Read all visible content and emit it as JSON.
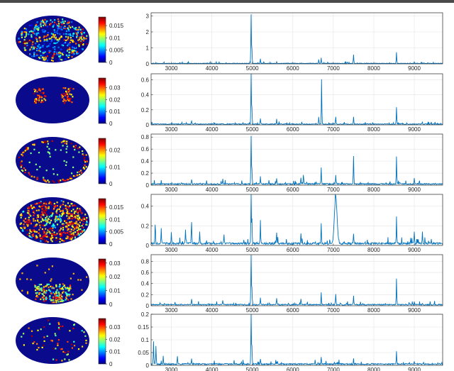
{
  "figure": {
    "rows": [
      {
        "colorbar_ticks": [
          "0.015",
          "0.01",
          "0.005",
          "0"
        ],
        "colorbar_tick_values": [
          0.015,
          0.01,
          0.005,
          0
        ],
        "colorbar_max": 0.0185
      },
      {
        "colorbar_ticks": [
          "0.03",
          "0.02",
          "0.01",
          "0"
        ],
        "colorbar_tick_values": [
          0.03,
          0.02,
          0.01,
          0
        ],
        "colorbar_max": 0.038
      },
      {
        "colorbar_ticks": [
          "0.02",
          "0.01",
          "0"
        ],
        "colorbar_tick_values": [
          0.02,
          0.01,
          0
        ],
        "colorbar_max": 0.027
      },
      {
        "colorbar_ticks": [
          "0.015",
          "0.01",
          "0.005",
          "0"
        ],
        "colorbar_tick_values": [
          0.015,
          0.01,
          0.005,
          0
        ],
        "colorbar_max": 0.0185
      },
      {
        "colorbar_ticks": [
          "0.03",
          "0.02",
          "0.01",
          "0"
        ],
        "colorbar_tick_values": [
          0.03,
          0.02,
          0.01,
          0
        ],
        "colorbar_max": 0.033
      },
      {
        "colorbar_ticks": [
          "0.03",
          "0.02",
          "0.01",
          "0"
        ],
        "colorbar_tick_values": [
          0.03,
          0.02,
          0.01,
          0
        ],
        "colorbar_max": 0.037
      }
    ]
  },
  "chart_data": [
    {
      "type": "line",
      "xlim": [
        2500,
        9700
      ],
      "ylim": [
        0,
        3.2
      ],
      "grid": true,
      "x_ticks": [
        "3000",
        "4000",
        "5000",
        "6000",
        "7000",
        "8000",
        "9000"
      ],
      "x_tick_values": [
        3000,
        4000,
        5000,
        6000,
        7000,
        8000,
        9000
      ],
      "y_ticks": [
        "3",
        "2",
        "1",
        "0"
      ],
      "y_tick_values": [
        3,
        2,
        1,
        0
      ],
      "baseline": 0.03,
      "peaks": [
        [
          4970,
          3.05
        ],
        [
          4990,
          0.9
        ],
        [
          5200,
          0.25
        ],
        [
          5600,
          0.1
        ],
        [
          6640,
          0.25
        ],
        [
          6700,
          0.35
        ],
        [
          7500,
          0.55
        ],
        [
          8560,
          0.7
        ],
        [
          9000,
          0.1
        ]
      ]
    },
    {
      "type": "line",
      "xlim": [
        2500,
        9700
      ],
      "ylim": [
        0,
        0.68
      ],
      "grid": true,
      "x_ticks": [
        "3000",
        "4000",
        "5000",
        "6000",
        "7000",
        "8000",
        "9000"
      ],
      "x_tick_values": [
        3000,
        4000,
        5000,
        6000,
        7000,
        8000,
        9000
      ],
      "y_ticks": [
        "0.6",
        "0.4",
        "0.2",
        "0"
      ],
      "y_tick_values": [
        0.6,
        0.4,
        0.2,
        0
      ],
      "baseline": 0.01,
      "peaks": [
        [
          3500,
          0.05
        ],
        [
          4970,
          0.68
        ],
        [
          4990,
          0.22
        ],
        [
          5200,
          0.08
        ],
        [
          5600,
          0.06
        ],
        [
          6640,
          0.1
        ],
        [
          6710,
          0.6
        ],
        [
          7060,
          0.1
        ],
        [
          7500,
          0.1
        ],
        [
          8560,
          0.22
        ],
        [
          9200,
          0.03
        ]
      ]
    },
    {
      "type": "line",
      "xlim": [
        2500,
        9700
      ],
      "ylim": [
        0,
        0.85
      ],
      "grid": true,
      "x_ticks": [
        "3000",
        "4000",
        "5000",
        "6000",
        "7000",
        "8000",
        "9000"
      ],
      "x_tick_values": [
        3000,
        4000,
        5000,
        6000,
        7000,
        8000,
        9000
      ],
      "y_ticks": [
        "0.8",
        "0.6",
        "0.4",
        "0.2",
        "0"
      ],
      "y_tick_values": [
        0.8,
        0.6,
        0.4,
        0.2,
        0
      ],
      "baseline": 0.02,
      "peaks": [
        [
          3500,
          0.08
        ],
        [
          4270,
          0.08
        ],
        [
          4970,
          0.8
        ],
        [
          4990,
          0.25
        ],
        [
          5200,
          0.12
        ],
        [
          5600,
          0.1
        ],
        [
          6200,
          0.1
        ],
        [
          6260,
          0.14
        ],
        [
          6700,
          0.28
        ],
        [
          7060,
          0.12
        ],
        [
          7500,
          0.47
        ],
        [
          8560,
          0.45
        ],
        [
          9000,
          0.1
        ]
      ]
    },
    {
      "type": "line",
      "xlim": [
        2500,
        9700
      ],
      "ylim": [
        0,
        0.52
      ],
      "grid": true,
      "x_ticks": [
        "3000",
        "4000",
        "5000",
        "6000",
        "7000",
        "8000",
        "9000"
      ],
      "x_tick_values": [
        3000,
        4000,
        5000,
        6000,
        7000,
        8000,
        9000
      ],
      "y_ticks": [
        "0.4",
        "0.2",
        "0"
      ],
      "y_tick_values": [
        0.4,
        0.2,
        0
      ],
      "baseline": 0.02,
      "peaks": [
        [
          2600,
          0.2
        ],
        [
          2750,
          0.15
        ],
        [
          3000,
          0.12
        ],
        [
          3350,
          0.15
        ],
        [
          3500,
          0.22
        ],
        [
          3700,
          0.12
        ],
        [
          4300,
          0.1
        ],
        [
          4970,
          0.5
        ],
        [
          4990,
          0.25
        ],
        [
          5200,
          0.2
        ],
        [
          5600,
          0.12
        ],
        [
          6200,
          0.1
        ],
        [
          6700,
          0.2
        ],
        [
          7060,
          0.48
        ],
        [
          7500,
          0.1
        ],
        [
          8560,
          0.27
        ],
        [
          9000,
          0.12
        ],
        [
          9200,
          0.12
        ]
      ]
    },
    {
      "type": "line",
      "xlim": [
        2500,
        9700
      ],
      "ylim": [
        0,
        0.92
      ],
      "grid": true,
      "x_ticks": [
        "3000",
        "4000",
        "5000",
        "6000",
        "7000",
        "8000",
        "9000"
      ],
      "x_tick_values": [
        3000,
        4000,
        5000,
        6000,
        7000,
        8000,
        9000
      ],
      "y_ticks": [
        "0.8",
        "0.6",
        "0.4",
        "0.2",
        "0"
      ],
      "y_tick_values": [
        0.8,
        0.6,
        0.4,
        0.2,
        0
      ],
      "baseline": 0.02,
      "peaks": [
        [
          3500,
          0.1
        ],
        [
          4270,
          0.08
        ],
        [
          4970,
          0.9
        ],
        [
          4990,
          0.3
        ],
        [
          5200,
          0.12
        ],
        [
          5600,
          0.12
        ],
        [
          6200,
          0.1
        ],
        [
          6700,
          0.2
        ],
        [
          7060,
          0.2
        ],
        [
          7500,
          0.15
        ],
        [
          8560,
          0.47
        ],
        [
          9000,
          0.06
        ]
      ]
    },
    {
      "type": "line",
      "xlim": [
        2500,
        9700
      ],
      "ylim": [
        0,
        0.2
      ],
      "grid": true,
      "x_ticks": [
        "3000",
        "4000",
        "5000",
        "6000",
        "7000",
        "8000",
        "9000"
      ],
      "x_tick_values": [
        3000,
        4000,
        5000,
        6000,
        7000,
        8000,
        9000
      ],
      "y_ticks": [
        "0.2",
        "0.15",
        "0.1",
        "0.05",
        "0"
      ],
      "y_tick_values": [
        0.2,
        0.15,
        0.1,
        0.05,
        0
      ],
      "baseline": 0.005,
      "peaks": [
        [
          2560,
          0.09
        ],
        [
          2620,
          0.07
        ],
        [
          2800,
          0.03
        ],
        [
          3150,
          0.03
        ],
        [
          3500,
          0.02
        ],
        [
          4970,
          0.2
        ],
        [
          4990,
          0.07
        ],
        [
          5200,
          0.02
        ],
        [
          6700,
          0.03
        ],
        [
          7500,
          0.02
        ],
        [
          8560,
          0.05
        ],
        [
          9000,
          0.01
        ]
      ]
    }
  ]
}
